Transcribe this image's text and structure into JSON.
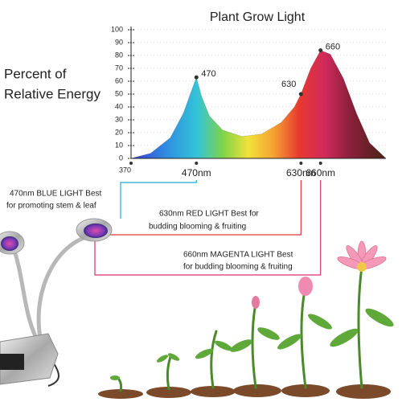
{
  "chart_data": {
    "type": "area",
    "title": "Plant Grow Light",
    "ylabel": [
      "Percent of",
      "Relative Energy"
    ],
    "x": [
      370,
      400,
      430,
      450,
      462,
      470,
      478,
      490,
      510,
      540,
      570,
      600,
      620,
      630,
      645,
      660,
      675,
      695,
      715,
      735,
      760
    ],
    "values": [
      0,
      4,
      16,
      35,
      52,
      63,
      48,
      33,
      22,
      17,
      19,
      28,
      40,
      50,
      70,
      84,
      81,
      62,
      35,
      12,
      0
    ],
    "xlim": [
      370,
      760
    ],
    "ylim": [
      0,
      100
    ],
    "xticks": [
      370,
      {
        "value": 470,
        "label": "470nm"
      },
      {
        "value": 630,
        "label": "630nm"
      },
      {
        "value": 660,
        "label": "660nm"
      }
    ],
    "xtick_colors": [
      "#222222",
      "#2ba6d6",
      "#e23a3a",
      "#d8306f"
    ],
    "yticks": [
      0,
      10,
      20,
      30,
      40,
      50,
      60,
      70,
      80,
      90,
      100
    ],
    "grid": true,
    "annotations": [
      {
        "x": 470,
        "y": 63
      },
      {
        "x": 630,
        "y": 50
      },
      {
        "x": 660,
        "y": 84
      }
    ]
  },
  "callouts": [
    {
      "lines": [
        "470nm BLUE LIGHT Best",
        "for promoting stem & leaf"
      ],
      "color": "#2ba6d6"
    },
    {
      "lines": [
        "630nm RED LIGHT Best for",
        "budding blooming & fruiting"
      ],
      "color": "#e23a3a"
    },
    {
      "lines": [
        "660nm MAGENTA LIGHT Best",
        "for budding blooming & fruiting"
      ],
      "color": "#d8306f"
    }
  ]
}
